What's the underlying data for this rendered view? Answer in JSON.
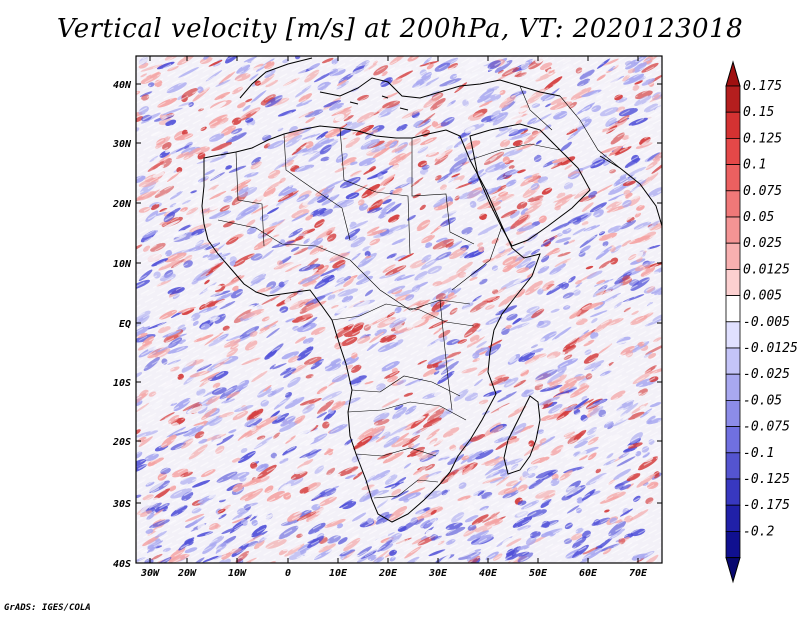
{
  "title": "Vertical velocity [m/s] at 200hPa, VT: 2020123018",
  "footer": "GrADS: IGES/COLA",
  "axes": {
    "lon_labels": [
      "30W",
      "20W",
      "10W",
      "0",
      "10E",
      "20E",
      "30E",
      "40E",
      "50E",
      "60E",
      "70E"
    ],
    "lat_labels": [
      "40N",
      "30N",
      "20N",
      "10N",
      "EQ",
      "10S",
      "20S",
      "30S",
      "40S"
    ]
  },
  "colorbar": {
    "labels": [
      "0.175",
      "0.15",
      "0.125",
      "0.1",
      "0.075",
      "0.05",
      "0.025",
      "0.0125",
      "0.005",
      "-0.005",
      "-0.0125",
      "-0.025",
      "-0.05",
      "-0.075",
      "-0.1",
      "-0.125",
      "-0.175",
      "-0.2"
    ],
    "colors": [
      "#b41e1e",
      "#d43232",
      "#e44848",
      "#ec6060",
      "#f07878",
      "#f49494",
      "#f8b0b0",
      "#fcd0d0",
      "#ffffff",
      "#e0e0ff",
      "#c4c4f8",
      "#a8a8f0",
      "#8c8ce8",
      "#7070e0",
      "#5454d0",
      "#3838c0",
      "#2020a8",
      "#101090"
    ],
    "top_color": "#a01010",
    "bottom_color": "#080870"
  },
  "map_colors": {
    "pos_weak": "#f4a4a4",
    "pos_strong": "#d43c3c",
    "neg_weak": "#a8a8f0",
    "neg_strong": "#5050d8",
    "neutral": "#f6f4fa"
  }
}
